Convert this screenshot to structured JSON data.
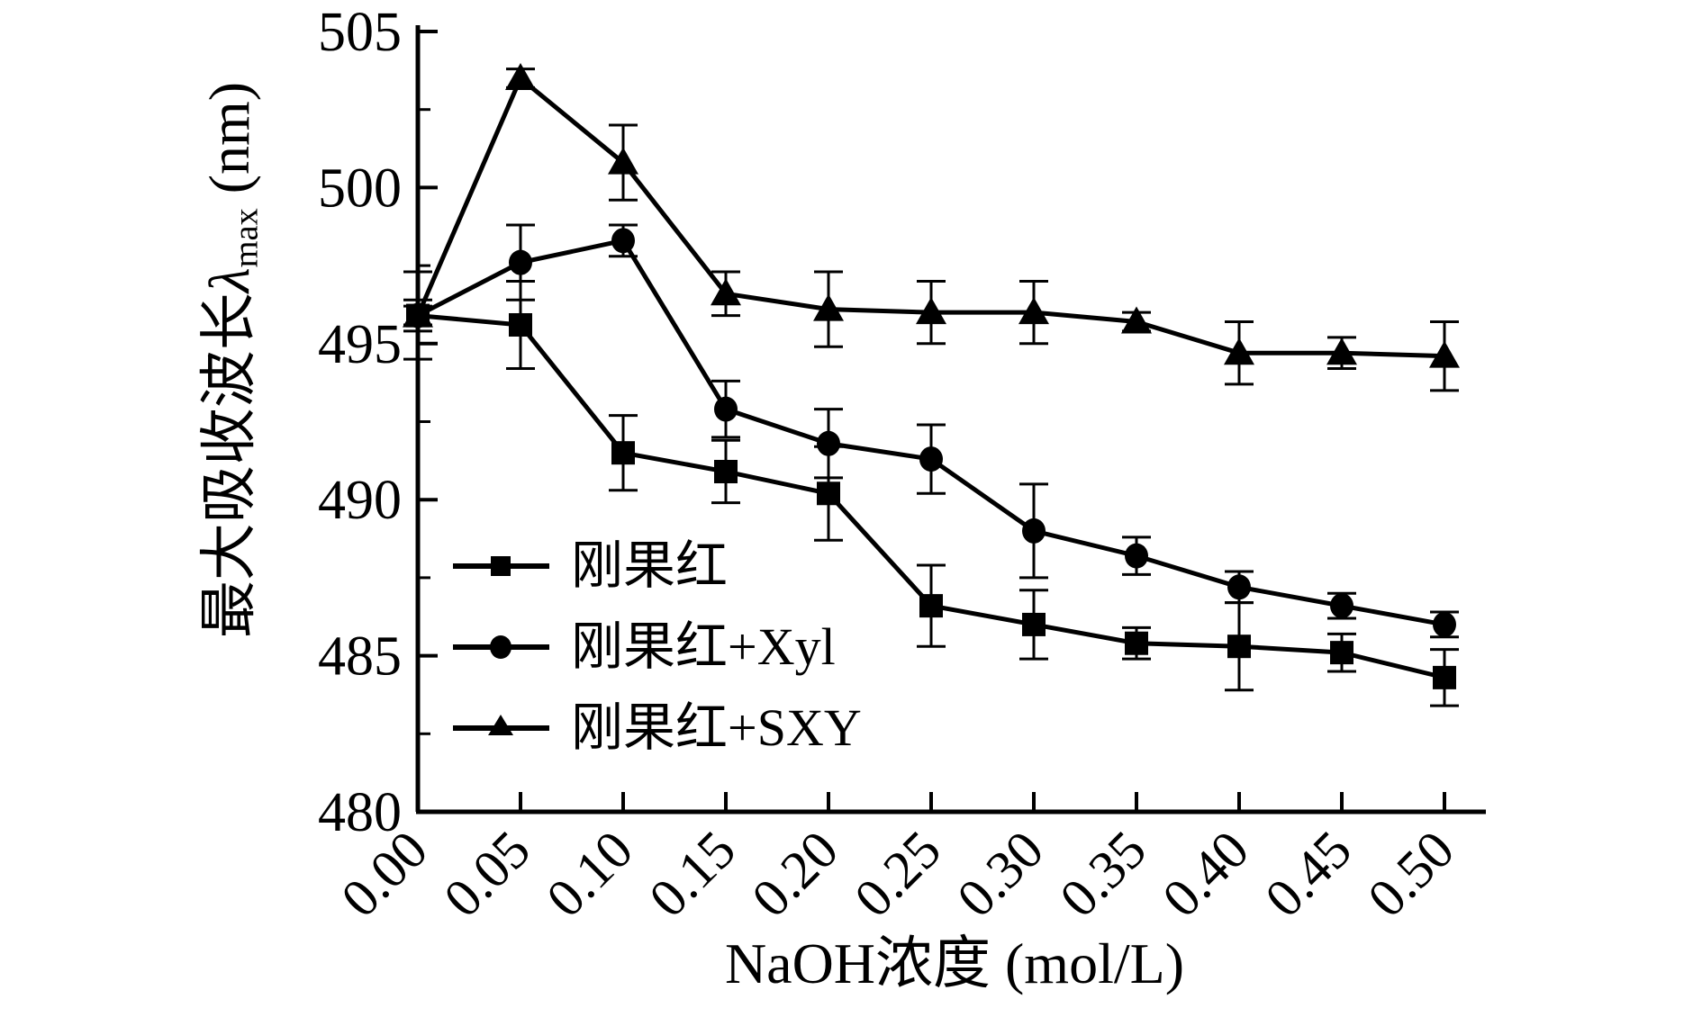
{
  "chart_data": {
    "type": "line",
    "title": "",
    "xlabel": "NaOH浓度 (mol/L)",
    "ylabel": "最大吸收波长λmax (nm)",
    "ylabel_parts": {
      "prefix": "最大吸收波长",
      "lambda": "λ",
      "lambda_sub": "max",
      "suffix": " (nm)"
    },
    "x": [
      0.0,
      0.05,
      0.1,
      0.15,
      0.2,
      0.25,
      0.3,
      0.35,
      0.4,
      0.45,
      0.5
    ],
    "x_tick_labels": [
      "0.00",
      "0.05",
      "0.10",
      "0.15",
      "0.20",
      "0.25",
      "0.30",
      "0.35",
      "0.40",
      "0.45",
      "0.50"
    ],
    "y_ticks": [
      480,
      485,
      490,
      495,
      500,
      505
    ],
    "y_minor_ticks": [
      482.5,
      487.5,
      492.5,
      497.5,
      502.5
    ],
    "ylim": [
      480,
      505
    ],
    "xlim": [
      0,
      0.52
    ],
    "grid": false,
    "axis_color": "#000000",
    "background_color": "#ffffff",
    "legend_position": "inside-lower-left",
    "series": [
      {
        "name": "刚果红",
        "marker": "square",
        "color": "#000000",
        "values": [
          495.9,
          495.6,
          491.5,
          490.9,
          490.2,
          486.6,
          486.0,
          485.4,
          485.3,
          485.1,
          484.3
        ],
        "errors": [
          1.4,
          1.4,
          1.2,
          1.0,
          1.5,
          1.3,
          1.1,
          0.5,
          1.4,
          0.6,
          0.9
        ]
      },
      {
        "name": "刚果红+Xyl",
        "marker": "circle",
        "color": "#000000",
        "values": [
          495.9,
          497.6,
          498.3,
          492.9,
          491.8,
          491.3,
          489.0,
          488.2,
          487.2,
          486.6,
          486.0
        ],
        "errors": [
          0.5,
          1.2,
          0.5,
          0.9,
          1.1,
          1.1,
          1.5,
          0.6,
          0.5,
          0.4,
          0.4
        ]
      },
      {
        "name": "刚果红+SXY",
        "marker": "triangle",
        "color": "#000000",
        "values": [
          495.9,
          503.5,
          500.8,
          496.6,
          496.1,
          496.0,
          496.0,
          495.7,
          494.7,
          494.7,
          494.6
        ],
        "errors": [
          0.3,
          0.3,
          1.2,
          0.7,
          1.2,
          1.0,
          1.0,
          0.3,
          1.0,
          0.5,
          1.1
        ]
      }
    ]
  }
}
